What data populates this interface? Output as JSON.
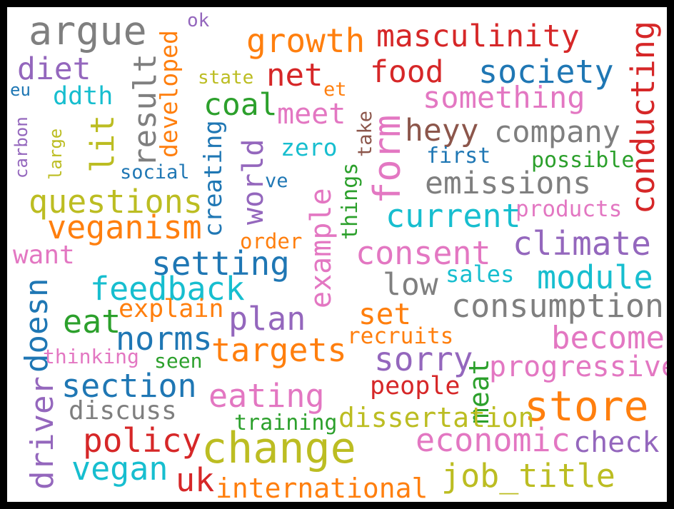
{
  "colors": {
    "blue": "#1f77b4",
    "orange": "#ff7f0e",
    "green": "#2ca02c",
    "red": "#d62728",
    "purple": "#9467bd",
    "brown": "#8c564b",
    "pink": "#e377c2",
    "gray": "#7f7f7f",
    "olive": "#bcbd22",
    "cyan": "#17becf"
  },
  "words": [
    {
      "text": "argue",
      "color": "gray"
    },
    {
      "text": "ok",
      "color": "purple"
    },
    {
      "text": "growth",
      "color": "orange"
    },
    {
      "text": "masculinity",
      "color": "red"
    },
    {
      "text": "conducting",
      "color": "red"
    },
    {
      "text": "developed",
      "color": "orange"
    },
    {
      "text": "diet",
      "color": "purple"
    },
    {
      "text": "result",
      "color": "gray"
    },
    {
      "text": "state",
      "color": "olive"
    },
    {
      "text": "net",
      "color": "red"
    },
    {
      "text": "food",
      "color": "red"
    },
    {
      "text": "society",
      "color": "blue"
    },
    {
      "text": "eu",
      "color": "blue"
    },
    {
      "text": "ddth",
      "color": "cyan"
    },
    {
      "text": "et",
      "color": "orange"
    },
    {
      "text": "something",
      "color": "pink"
    },
    {
      "text": "coal",
      "color": "green"
    },
    {
      "text": "meet",
      "color": "pink"
    },
    {
      "text": "take",
      "color": "brown"
    },
    {
      "text": "carbon",
      "color": "purple"
    },
    {
      "text": "lit",
      "color": "olive"
    },
    {
      "text": "form",
      "color": "pink"
    },
    {
      "text": "heyy",
      "color": "brown"
    },
    {
      "text": "company",
      "color": "gray"
    },
    {
      "text": "large",
      "color": "olive"
    },
    {
      "text": "creating",
      "color": "blue"
    },
    {
      "text": "world",
      "color": "purple"
    },
    {
      "text": "zero",
      "color": "cyan"
    },
    {
      "text": "first",
      "color": "blue"
    },
    {
      "text": "possible",
      "color": "green"
    },
    {
      "text": "social",
      "color": "blue"
    },
    {
      "text": "ve",
      "color": "blue"
    },
    {
      "text": "things",
      "color": "green"
    },
    {
      "text": "emissions",
      "color": "gray"
    },
    {
      "text": "questions",
      "color": "olive"
    },
    {
      "text": "example",
      "color": "pink"
    },
    {
      "text": "products",
      "color": "pink"
    },
    {
      "text": "current",
      "color": "cyan"
    },
    {
      "text": "veganism",
      "color": "orange"
    },
    {
      "text": "order",
      "color": "orange"
    },
    {
      "text": "climate",
      "color": "purple"
    },
    {
      "text": "consent",
      "color": "pink"
    },
    {
      "text": "want",
      "color": "pink"
    },
    {
      "text": "setting",
      "color": "blue"
    },
    {
      "text": "sales",
      "color": "cyan"
    },
    {
      "text": "module",
      "color": "cyan"
    },
    {
      "text": "low",
      "color": "gray"
    },
    {
      "text": "feedback",
      "color": "cyan"
    },
    {
      "text": "doesn",
      "color": "blue"
    },
    {
      "text": "explain",
      "color": "orange"
    },
    {
      "text": "consumption",
      "color": "gray"
    },
    {
      "text": "eat",
      "color": "green"
    },
    {
      "text": "plan",
      "color": "purple"
    },
    {
      "text": "set",
      "color": "orange"
    },
    {
      "text": "norms",
      "color": "blue"
    },
    {
      "text": "become",
      "color": "pink"
    },
    {
      "text": "recruits",
      "color": "orange"
    },
    {
      "text": "targets",
      "color": "orange"
    },
    {
      "text": "meat",
      "color": "green"
    },
    {
      "text": "thinking",
      "color": "pink"
    },
    {
      "text": "seen",
      "color": "green"
    },
    {
      "text": "sorry",
      "color": "purple"
    },
    {
      "text": "progressive",
      "color": "pink"
    },
    {
      "text": "section",
      "color": "blue"
    },
    {
      "text": "people",
      "color": "red"
    },
    {
      "text": "driver",
      "color": "purple"
    },
    {
      "text": "eating",
      "color": "pink"
    },
    {
      "text": "store",
      "color": "orange"
    },
    {
      "text": "discuss",
      "color": "gray"
    },
    {
      "text": "dissertation",
      "color": "olive"
    },
    {
      "text": "training",
      "color": "green"
    },
    {
      "text": "policy",
      "color": "red"
    },
    {
      "text": "change",
      "color": "olive"
    },
    {
      "text": "economic",
      "color": "pink"
    },
    {
      "text": "check",
      "color": "purple"
    },
    {
      "text": "vegan",
      "color": "cyan"
    },
    {
      "text": "job_title",
      "color": "olive"
    },
    {
      "text": "uk",
      "color": "red"
    },
    {
      "text": "international",
      "color": "orange"
    }
  ]
}
